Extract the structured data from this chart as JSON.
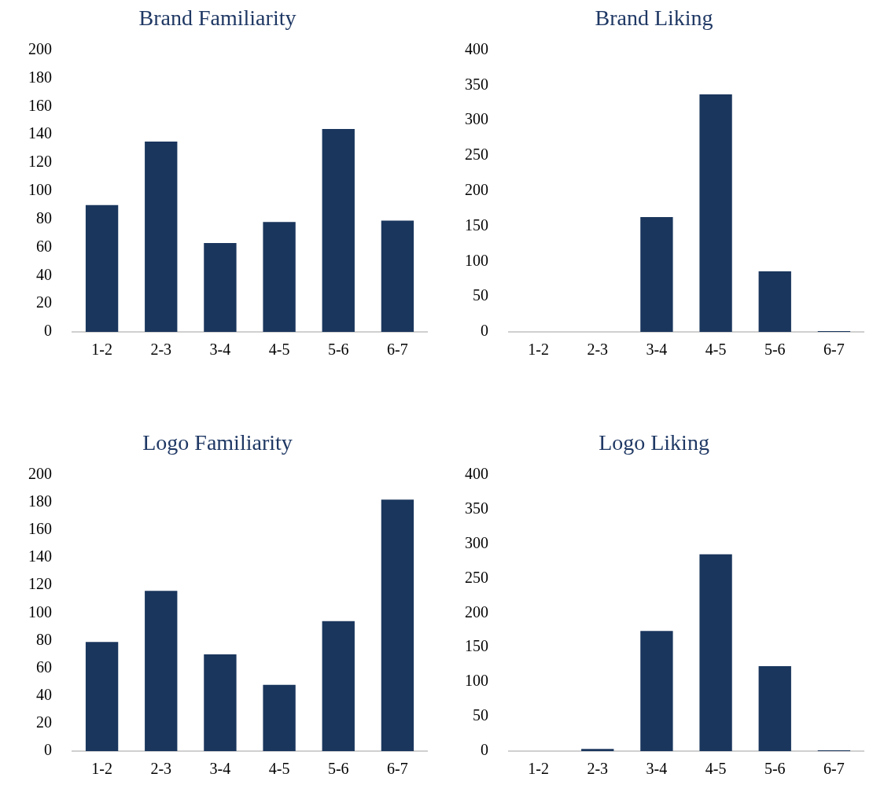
{
  "chart_data": [
    {
      "type": "bar",
      "title": "Brand Familiarity",
      "categories": [
        "1-2",
        "2-3",
        "3-4",
        "4-5",
        "5-6",
        "6-7"
      ],
      "values": [
        90,
        135,
        63,
        78,
        144,
        79
      ],
      "color": "#1a365d",
      "ylim": [
        0,
        200
      ],
      "yticks": [
        0,
        20,
        40,
        60,
        80,
        100,
        120,
        140,
        160,
        180,
        200
      ],
      "grid": false
    },
    {
      "type": "bar",
      "title": "Brand Liking",
      "categories": [
        "1-2",
        "2-3",
        "3-4",
        "4-5",
        "5-6",
        "6-7"
      ],
      "values": [
        0,
        0,
        163,
        337,
        86,
        1
      ],
      "color": "#1a365d",
      "ylim": [
        0,
        400
      ],
      "yticks": [
        0,
        50,
        100,
        150,
        200,
        250,
        300,
        350,
        400
      ],
      "grid": false
    },
    {
      "type": "bar",
      "title": "Logo Familiarity",
      "categories": [
        "1-2",
        "2-3",
        "3-4",
        "4-5",
        "5-6",
        "6-7"
      ],
      "values": [
        79,
        116,
        70,
        48,
        94,
        182
      ],
      "color": "#1a365d",
      "ylim": [
        0,
        200
      ],
      "yticks": [
        0,
        20,
        40,
        60,
        80,
        100,
        120,
        140,
        160,
        180,
        200
      ],
      "grid": false
    },
    {
      "type": "bar",
      "title": "Logo Liking",
      "categories": [
        "1-2",
        "2-3",
        "3-4",
        "4-5",
        "5-6",
        "6-7"
      ],
      "values": [
        0,
        3,
        174,
        285,
        123,
        1
      ],
      "color": "#1a365d",
      "ylim": [
        0,
        400
      ],
      "yticks": [
        0,
        50,
        100,
        150,
        200,
        250,
        300,
        350,
        400
      ],
      "grid": false
    }
  ]
}
